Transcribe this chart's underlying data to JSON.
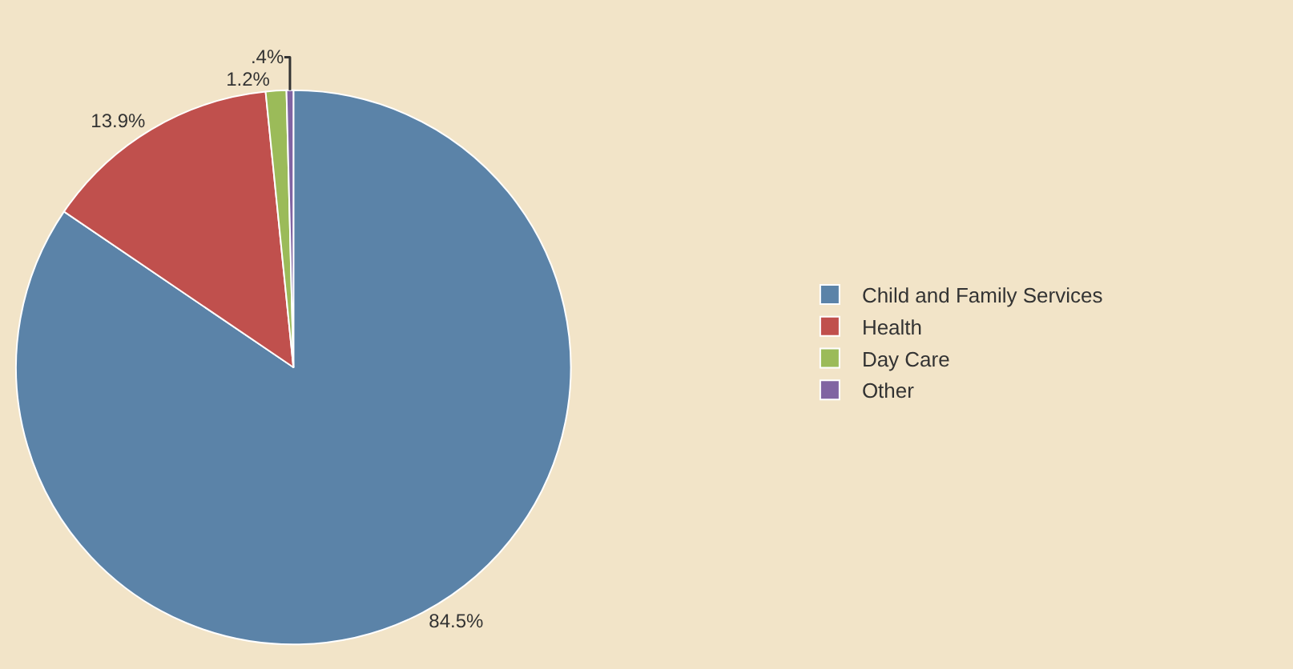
{
  "chart_data": {
    "type": "pie",
    "categories": [
      "Child and Family Services",
      "Health",
      "Day Care",
      "Other"
    ],
    "values": [
      84.5,
      13.9,
      1.2,
      0.4
    ],
    "colors": [
      "#5b83a8",
      "#c0504d",
      "#9bbb59",
      "#8064a2"
    ],
    "value_labels": [
      "84.5%",
      "13.9%",
      "1.2%",
      ".4%"
    ],
    "legend": "right"
  }
}
